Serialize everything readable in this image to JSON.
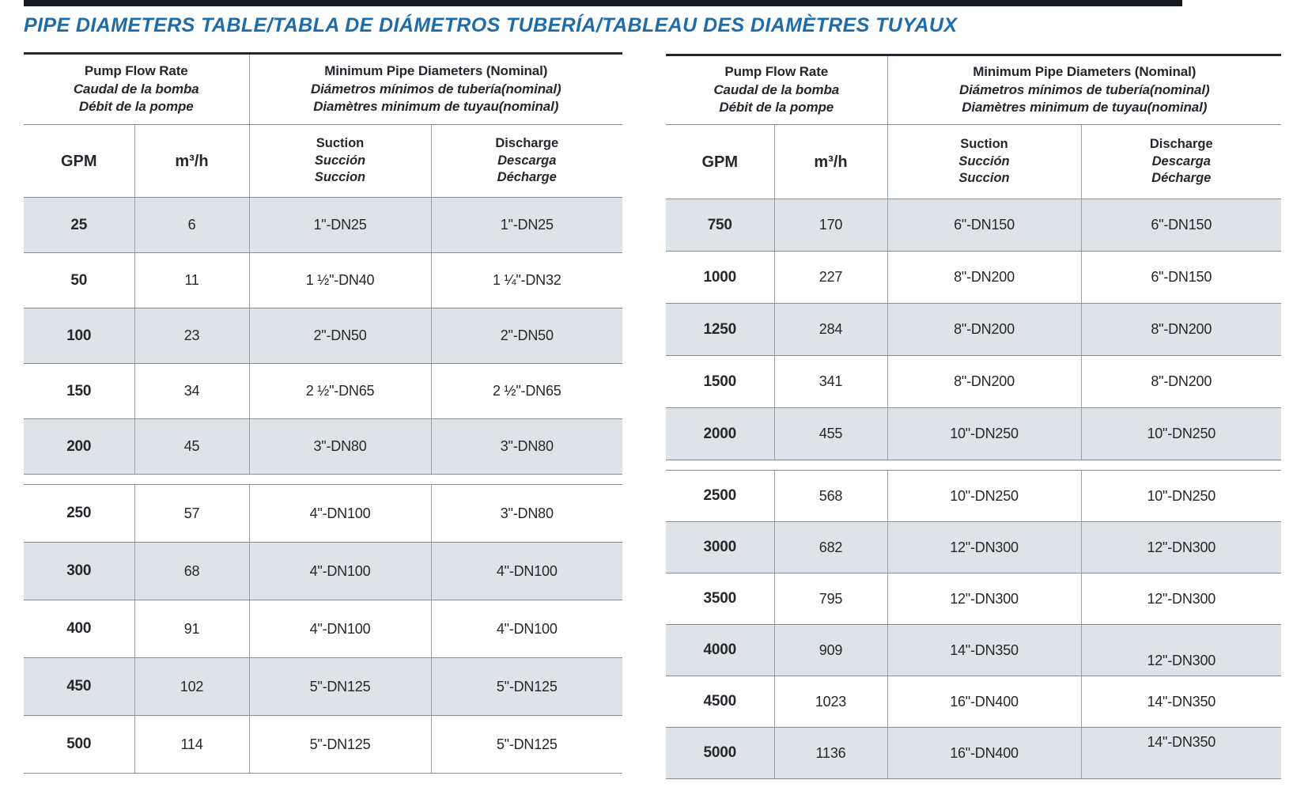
{
  "page": {
    "title": "PIPE DIAMETERS TABLE/TABLA DE DIÁMETROS TUBERÍA/TABLEAU DES DIAMÈTRES TUYAUX"
  },
  "colors": {
    "title_blue": "#1e6ca9",
    "row_shade": "#dde3e6",
    "border_gray": "#868d92",
    "top_rule_black": "#24282c"
  },
  "tables": [
    {
      "id": "left",
      "header": {
        "flow_group": [
          "Pump Flow Rate",
          "Caudal de la bomba",
          "Débit de la pompe"
        ],
        "diameter_group": [
          "Minimum Pipe Diameters (Nominal)",
          "Diámetros mínimos de tubería(nominal)",
          "Diamètres minimum de tuyau(nominal)"
        ],
        "gpm": "GPM",
        "m3h": "m³/h",
        "suction": [
          "Suction",
          "Succión",
          "Succion"
        ],
        "discharge": [
          "Discharge",
          "Descarga",
          "Décharge"
        ]
      },
      "sections": [
        {
          "rows": [
            {
              "gpm": "25",
              "m3h": "6",
              "suction": "1\"-DN25",
              "discharge": "1\"-DN25",
              "shaded": true
            },
            {
              "gpm": "50",
              "m3h": "11",
              "suction": "1 ½\"-DN40",
              "discharge": "1 ¼\"-DN32",
              "shaded": false
            },
            {
              "gpm": "100",
              "m3h": "23",
              "suction": "2\"-DN50",
              "discharge": "2\"-DN50",
              "shaded": true
            },
            {
              "gpm": "150",
              "m3h": "34",
              "suction": "2 ½\"-DN65",
              "discharge": "2 ½\"-DN65",
              "shaded": false
            },
            {
              "gpm": "200",
              "m3h": "45",
              "suction": "3\"-DN80",
              "discharge": "3\"-DN80",
              "shaded": true
            }
          ]
        },
        {
          "rows": [
            {
              "gpm": "250",
              "m3h": "57",
              "suction": "4\"-DN100",
              "discharge": "3\"-DN80",
              "shaded": false
            },
            {
              "gpm": "300",
              "m3h": "68",
              "suction": "4\"-DN100",
              "discharge": "4\"-DN100",
              "shaded": true
            },
            {
              "gpm": "400",
              "m3h": "91",
              "suction": "4\"-DN100",
              "discharge": "4\"-DN100",
              "shaded": false
            },
            {
              "gpm": "450",
              "m3h": "102",
              "suction": "5\"-DN125",
              "discharge": "5\"-DN125",
              "shaded": true
            },
            {
              "gpm": "500",
              "m3h": "114",
              "suction": "5\"-DN125",
              "discharge": "5\"-DN125",
              "shaded": false
            }
          ]
        }
      ]
    },
    {
      "id": "right",
      "header": {
        "flow_group": [
          "Pump Flow Rate",
          "Caudal de la bomba",
          "Débit de la pompe"
        ],
        "diameter_group": [
          "Minimum Pipe Diameters (Nominal)",
          "Diámetros mínimos de tubería(nominal)",
          "Diamètres minimum de tuyau(nominal)"
        ],
        "gpm": "GPM",
        "m3h": "m³/h",
        "suction": [
          "Suction",
          "Succión",
          "Succion"
        ],
        "discharge": [
          "Discharge",
          "Descarga",
          "Décharge"
        ]
      },
      "sections": [
        {
          "rows": [
            {
              "gpm": "750",
              "m3h": "170",
              "suction": "6\"-DN150",
              "discharge": "6\"-DN150",
              "shaded": true
            },
            {
              "gpm": "1000",
              "m3h": "227",
              "suction": "8\"-DN200",
              "discharge": "6\"-DN150",
              "shaded": false
            },
            {
              "gpm": "1250",
              "m3h": "284",
              "suction": "8\"-DN200",
              "discharge": "8\"-DN200",
              "shaded": true
            },
            {
              "gpm": "1500",
              "m3h": "341",
              "suction": "8\"-DN200",
              "discharge": "8\"-DN200",
              "shaded": false
            },
            {
              "gpm": "2000",
              "m3h": "455",
              "suction": "10\"-DN250",
              "discharge": "10\"-DN250",
              "shaded": true
            }
          ]
        },
        {
          "rows": [
            {
              "gpm": "2500",
              "m3h": "568",
              "suction": "10\"-DN250",
              "discharge": "10\"-DN250",
              "shaded": false
            },
            {
              "gpm": "3000",
              "m3h": "682",
              "suction": "12\"-DN300",
              "discharge": "12\"-DN300",
              "shaded": true
            },
            {
              "gpm": "3500",
              "m3h": "795",
              "suction": "12\"-DN300",
              "discharge": "12\"-DN300",
              "shaded": false
            },
            {
              "gpm": "4000",
              "m3h": "909",
              "suction": "14\"-DN350",
              "discharge": "12\"-DN300",
              "shaded": true
            },
            {
              "gpm": "4500",
              "m3h": "1023",
              "suction": "16\"-DN400",
              "discharge": "14\"-DN350",
              "shaded": false
            },
            {
              "gpm": "5000",
              "m3h": "1136",
              "suction": "16\"-DN400",
              "discharge": "14\"-DN350",
              "shaded": true
            }
          ]
        }
      ]
    }
  ]
}
